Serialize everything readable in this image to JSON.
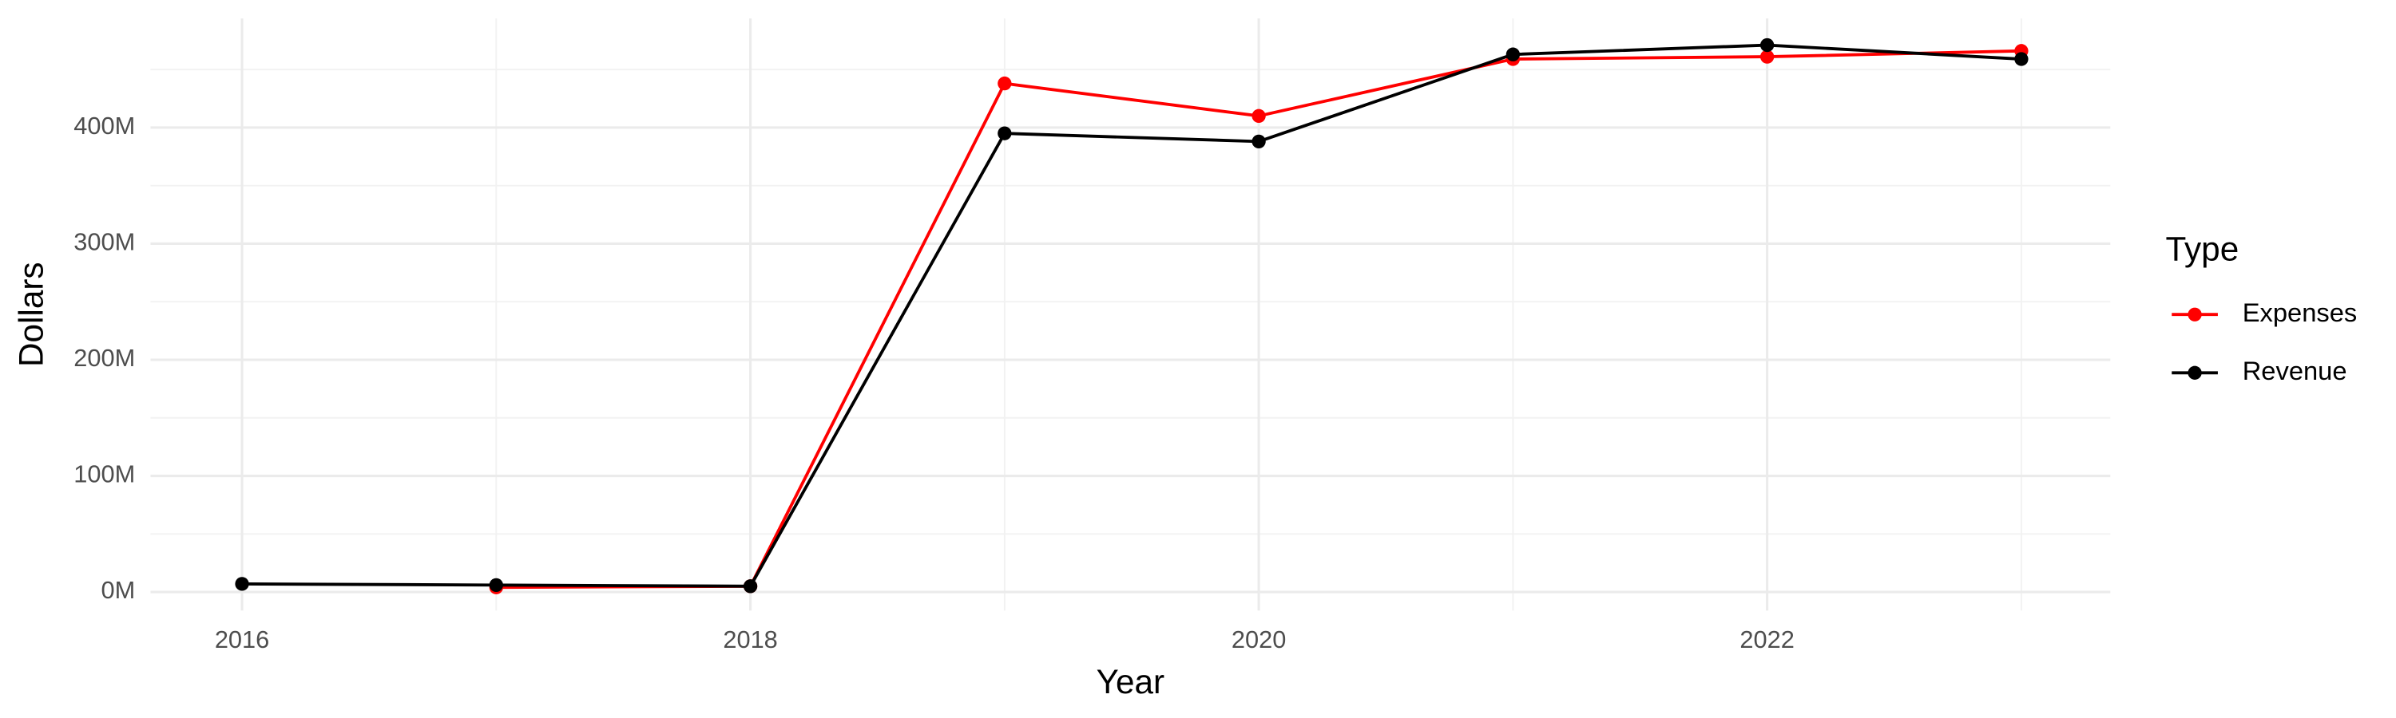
{
  "chart_data": {
    "type": "line",
    "x_label": "Year",
    "y_label": "Dollars",
    "x": [
      2016,
      2017,
      2018,
      2019,
      2020,
      2021,
      2022,
      2023
    ],
    "series": [
      {
        "name": "Expenses",
        "color": "#ff0000",
        "values": [
          null,
          4000000,
          5000000,
          438000000,
          410000000,
          459000000,
          461000000,
          466000000
        ]
      },
      {
        "name": "Revenue",
        "color": "#000000",
        "values": [
          7000000,
          6000000,
          5000000,
          395000000,
          388000000,
          463000000,
          471000000,
          459000000
        ]
      }
    ],
    "xlim": [
      2015.64,
      2023.35
    ],
    "xticks": [
      2016,
      2018,
      2020,
      2022
    ],
    "ylim": [
      -16000000,
      494000000
    ],
    "yticks": [
      {
        "value": 0,
        "label": "0M"
      },
      {
        "value": 100000000,
        "label": "100M"
      },
      {
        "value": 200000000,
        "label": "200M"
      },
      {
        "value": 300000000,
        "label": "300M"
      },
      {
        "value": 400000000,
        "label": "400M"
      }
    ],
    "grid": true,
    "legend_title": "Type",
    "legend_position": "right"
  }
}
